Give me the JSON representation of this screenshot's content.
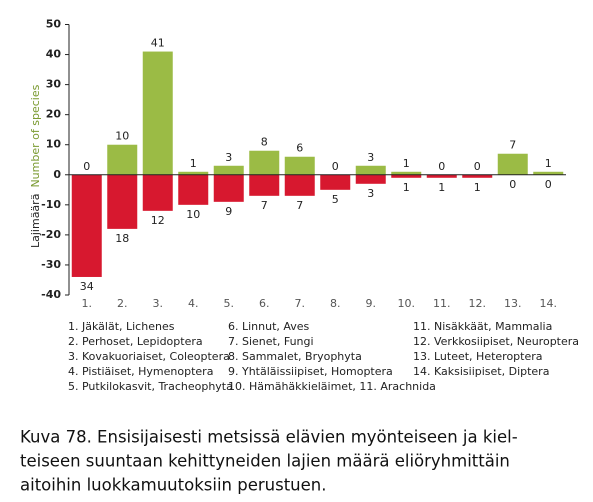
{
  "chart_data": {
    "type": "bar",
    "categories": [
      "1.",
      "2.",
      "3.",
      "4.",
      "5.",
      "6.",
      "7.",
      "8.",
      "9.",
      "10.",
      "11.",
      "12.",
      "13.",
      "14."
    ],
    "series": [
      {
        "color": "#9bbb45",
        "values": [
          0,
          10,
          41,
          1,
          3,
          8,
          6,
          0,
          3,
          1,
          0,
          0,
          7,
          1
        ]
      },
      {
        "color": "#d7182f",
        "values": [
          -34,
          -18,
          -12,
          -10,
          -9,
          -7,
          -7,
          -5,
          -3,
          -1,
          -1,
          -1,
          0,
          0
        ],
        "value_labels": [
          "34",
          "18",
          "12",
          "10",
          "9",
          "7",
          "7",
          "5",
          "3",
          "1",
          "1",
          "1",
          "0",
          "0"
        ]
      }
    ],
    "ylabel": [
      "Lajimäärä",
      "Number of species"
    ],
    "ylim": [
      -40,
      50
    ],
    "yticks": [
      -40,
      -30,
      -20,
      -10,
      0,
      10,
      20,
      30,
      40,
      50
    ],
    "legend_items": [
      "1. Jäkälät, Lichenes",
      "2. Perhoset, Lepidoptera",
      "3. Kovakuoriaiset, Coleoptera",
      "4. Pistiäiset, Hymenoptera",
      "5. Putkilokasvit, Tracheophyta",
      "6. Linnut, Aves",
      "7. Sienet, Fungi",
      "8. Sammalet, Bryophyta",
      "9. Yhtäläissiipiset, Homoptera",
      "10. Hämähäkkieläimet, 11. Arachnida",
      "11. Nisäkkäät, Mammalia",
      "12. Verkkosiipiset, Neuroptera",
      "13. Luteet, Heteroptera",
      "14. Kaksisiipiset, Diptera"
    ],
    "caption": [
      "Kuva 78. Ensisijaisesti metsissä elävien myönteiseen ja kiel-",
      "teiseen suuntaan kehittyneiden lajien määrä eliöryhmittäin",
      "aitoihin luokkamuutoksiin perustuen."
    ]
  }
}
